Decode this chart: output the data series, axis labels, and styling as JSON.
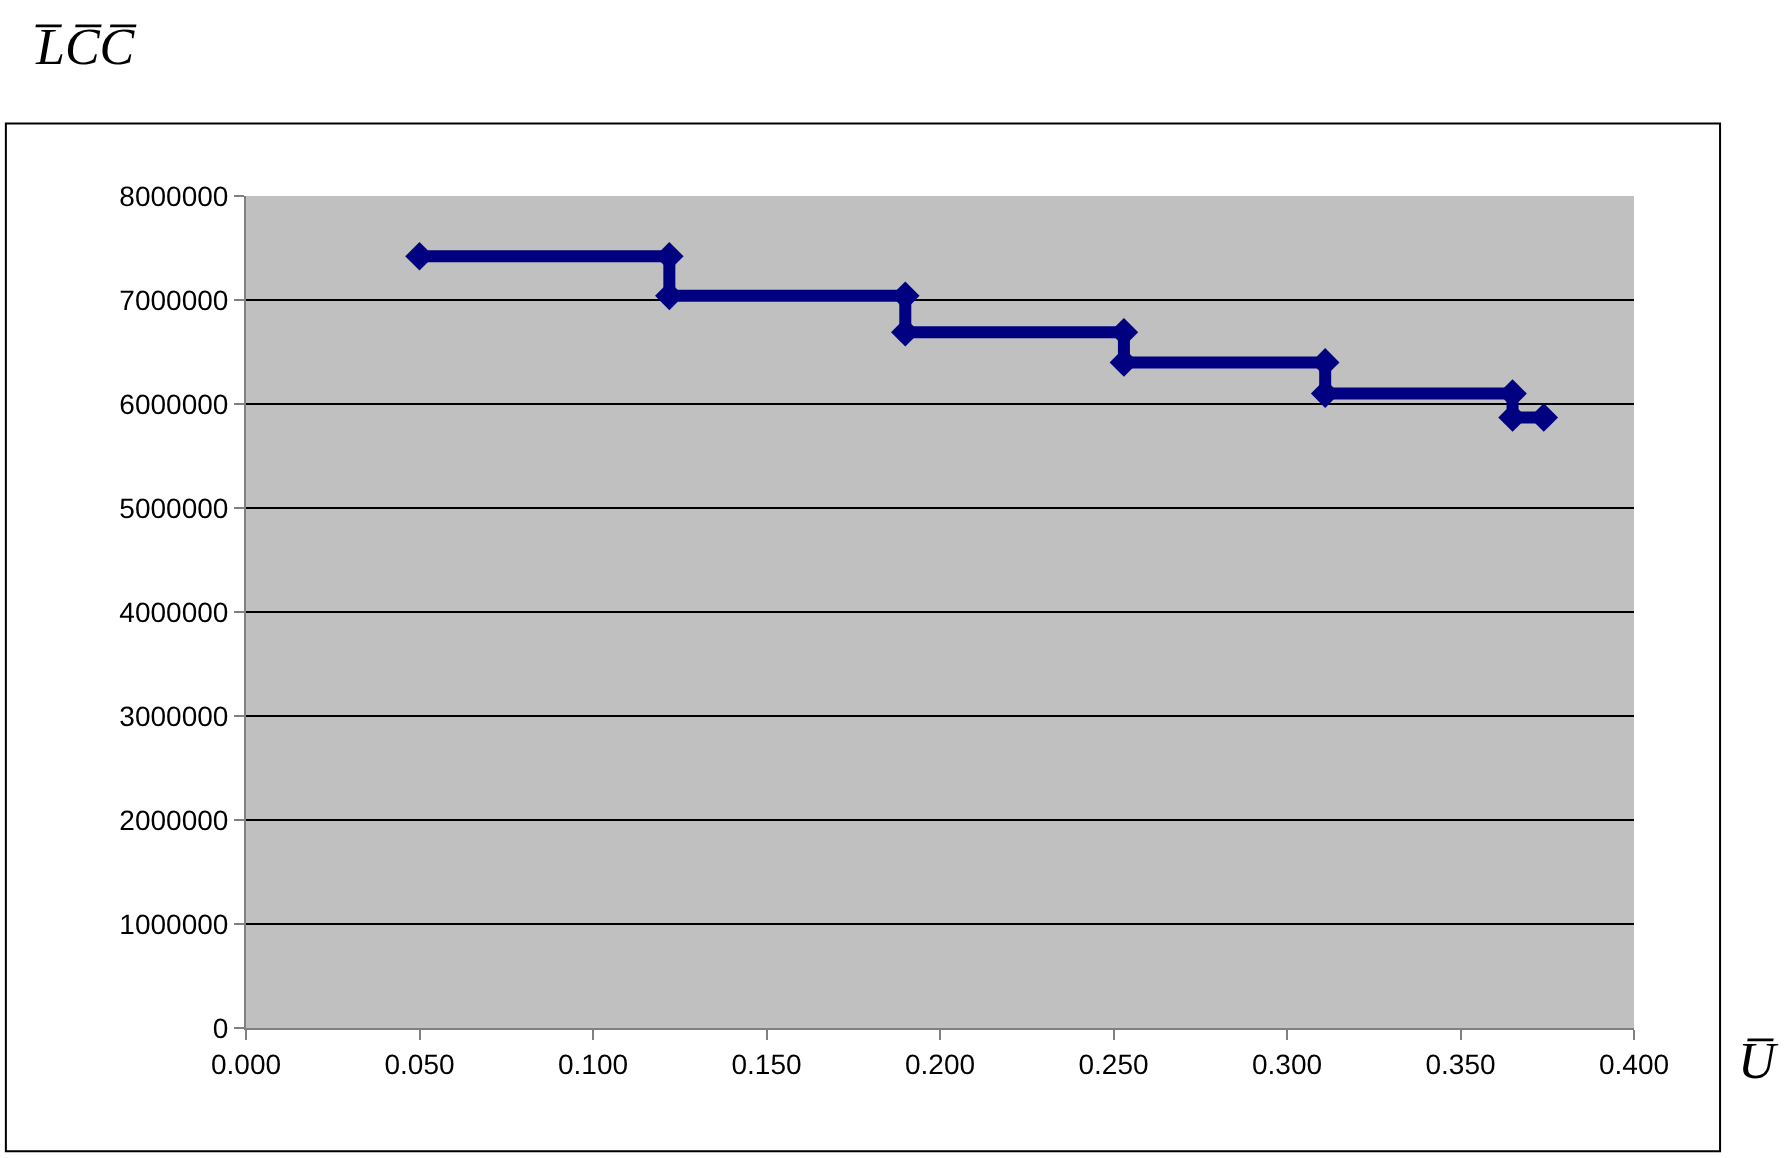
{
  "chart_data": {
    "type": "line",
    "xlabel": "U̅",
    "ylabel": "L̅C̅C̅",
    "x": [
      0.05,
      0.122,
      0.122,
      0.19,
      0.19,
      0.253,
      0.253,
      0.311,
      0.311,
      0.365,
      0.365,
      0.374
    ],
    "series": [
      {
        "color": "#000080",
        "values": [
          7420000,
          7420000,
          7040000,
          7040000,
          6690000,
          6690000,
          6400000,
          6400000,
          6100000,
          6100000,
          5870000,
          5870000
        ]
      }
    ],
    "xlim": [
      0,
      0.4
    ],
    "xticks": [
      {
        "value": 0,
        "label": "0.000"
      },
      {
        "value": 0.05,
        "label": "0.050"
      },
      {
        "value": 0.1,
        "label": "0.100"
      },
      {
        "value": 0.15,
        "label": "0.150"
      },
      {
        "value": 0.2,
        "label": "0.200"
      },
      {
        "value": 0.25,
        "label": "0.250"
      },
      {
        "value": 0.3,
        "label": "0.300"
      },
      {
        "value": 0.35,
        "label": "0.350"
      },
      {
        "value": 0.4,
        "label": "0.400"
      }
    ],
    "ylim": [
      0,
      8000000
    ],
    "yticks": [
      0,
      1000000,
      2000000,
      3000000,
      4000000,
      5000000,
      6000000,
      7000000,
      8000000
    ],
    "grid": "y",
    "marker": "diamond",
    "line_style": "solid"
  }
}
